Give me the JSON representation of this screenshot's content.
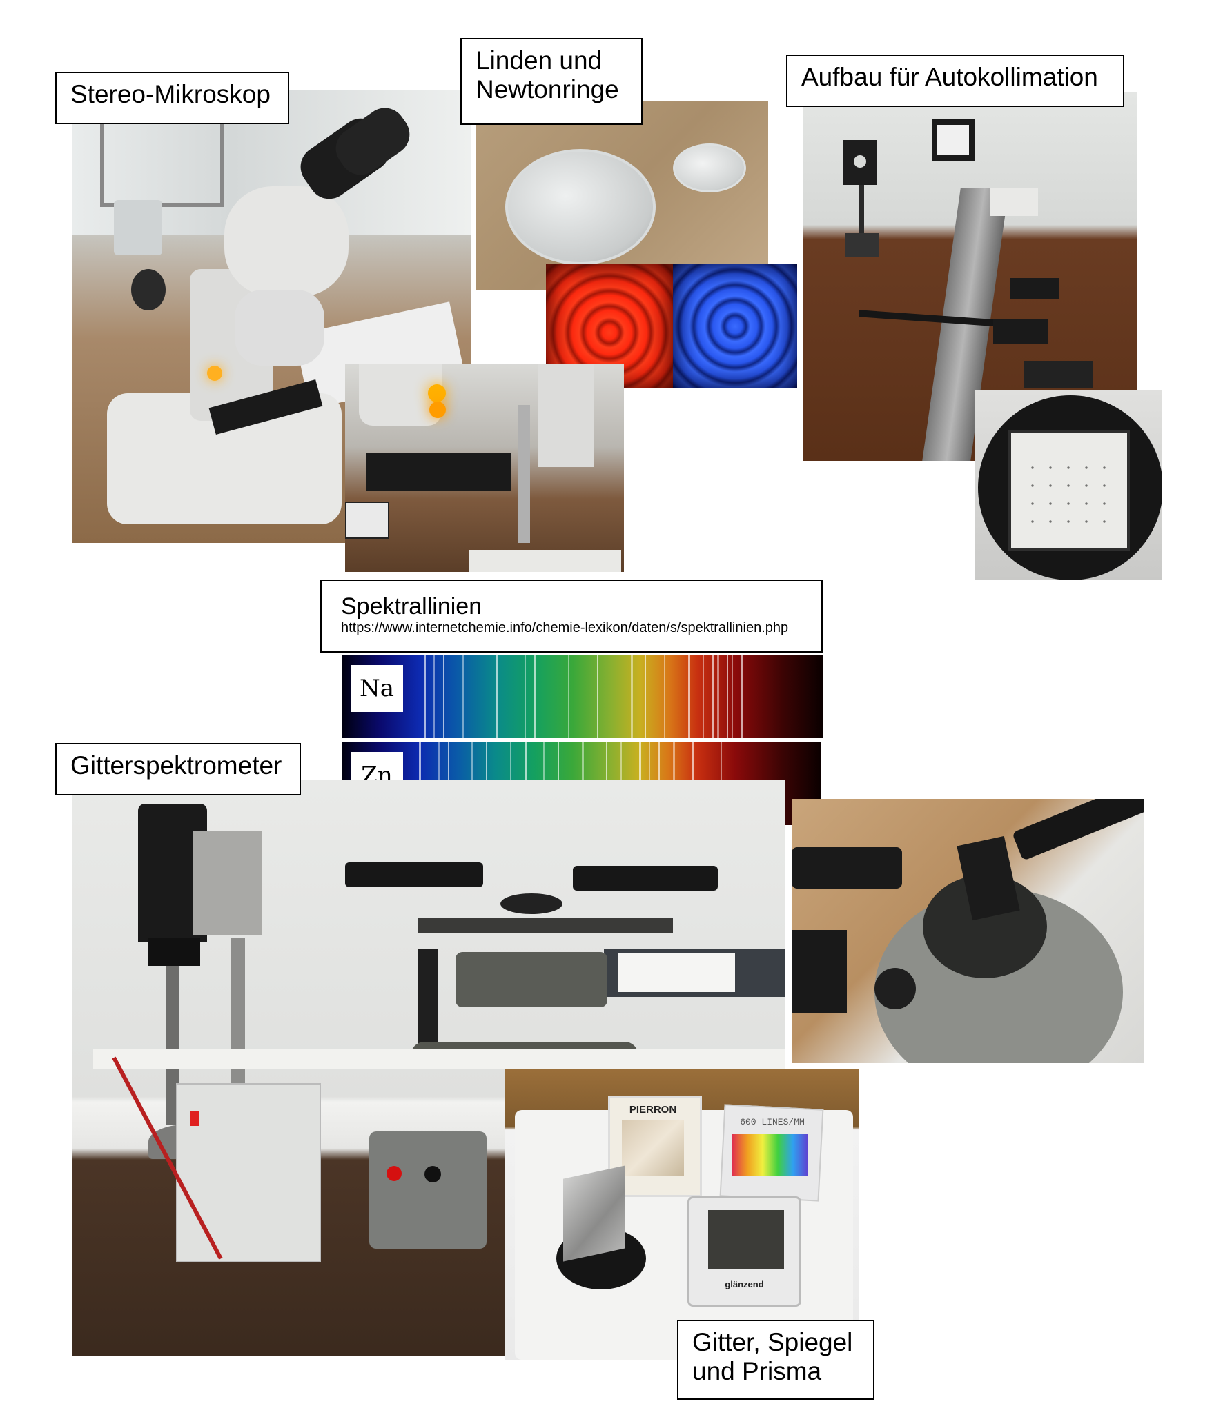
{
  "labels": {
    "stereo": "Stereo-Mikroskop",
    "linden_line1": "Linden und",
    "linden_line2": "Newtonringe",
    "autokoll": "Aufbau für Autokollimation",
    "spektral_title": "Spektrallinien",
    "spektral_url": "https://www.internetchemie.info/chemie-lexikon/daten/s/spektrallinien.php",
    "gitter": "Gitterspektrometer",
    "gsp_line1": "Gitter, Spiegel",
    "gsp_line2": "und Prisma"
  },
  "spectra": [
    {
      "element": "Na",
      "lines": [
        0.17,
        0.19,
        0.21,
        0.25,
        0.32,
        0.38,
        0.4,
        0.47,
        0.53,
        0.6,
        0.63,
        0.67,
        0.72,
        0.75,
        0.77,
        0.78,
        0.8,
        0.81,
        0.83
      ]
    },
    {
      "element": "Zn",
      "lines": [
        0.16,
        0.2,
        0.22,
        0.27,
        0.3,
        0.35,
        0.38,
        0.42,
        0.45,
        0.5,
        0.55,
        0.58,
        0.62,
        0.64,
        0.66,
        0.69,
        0.73,
        0.79
      ]
    }
  ],
  "photo_text": {
    "pierron": "PIERRON",
    "lines_mm": "600 LINES/MM",
    "glaenzend": "glänzend"
  }
}
